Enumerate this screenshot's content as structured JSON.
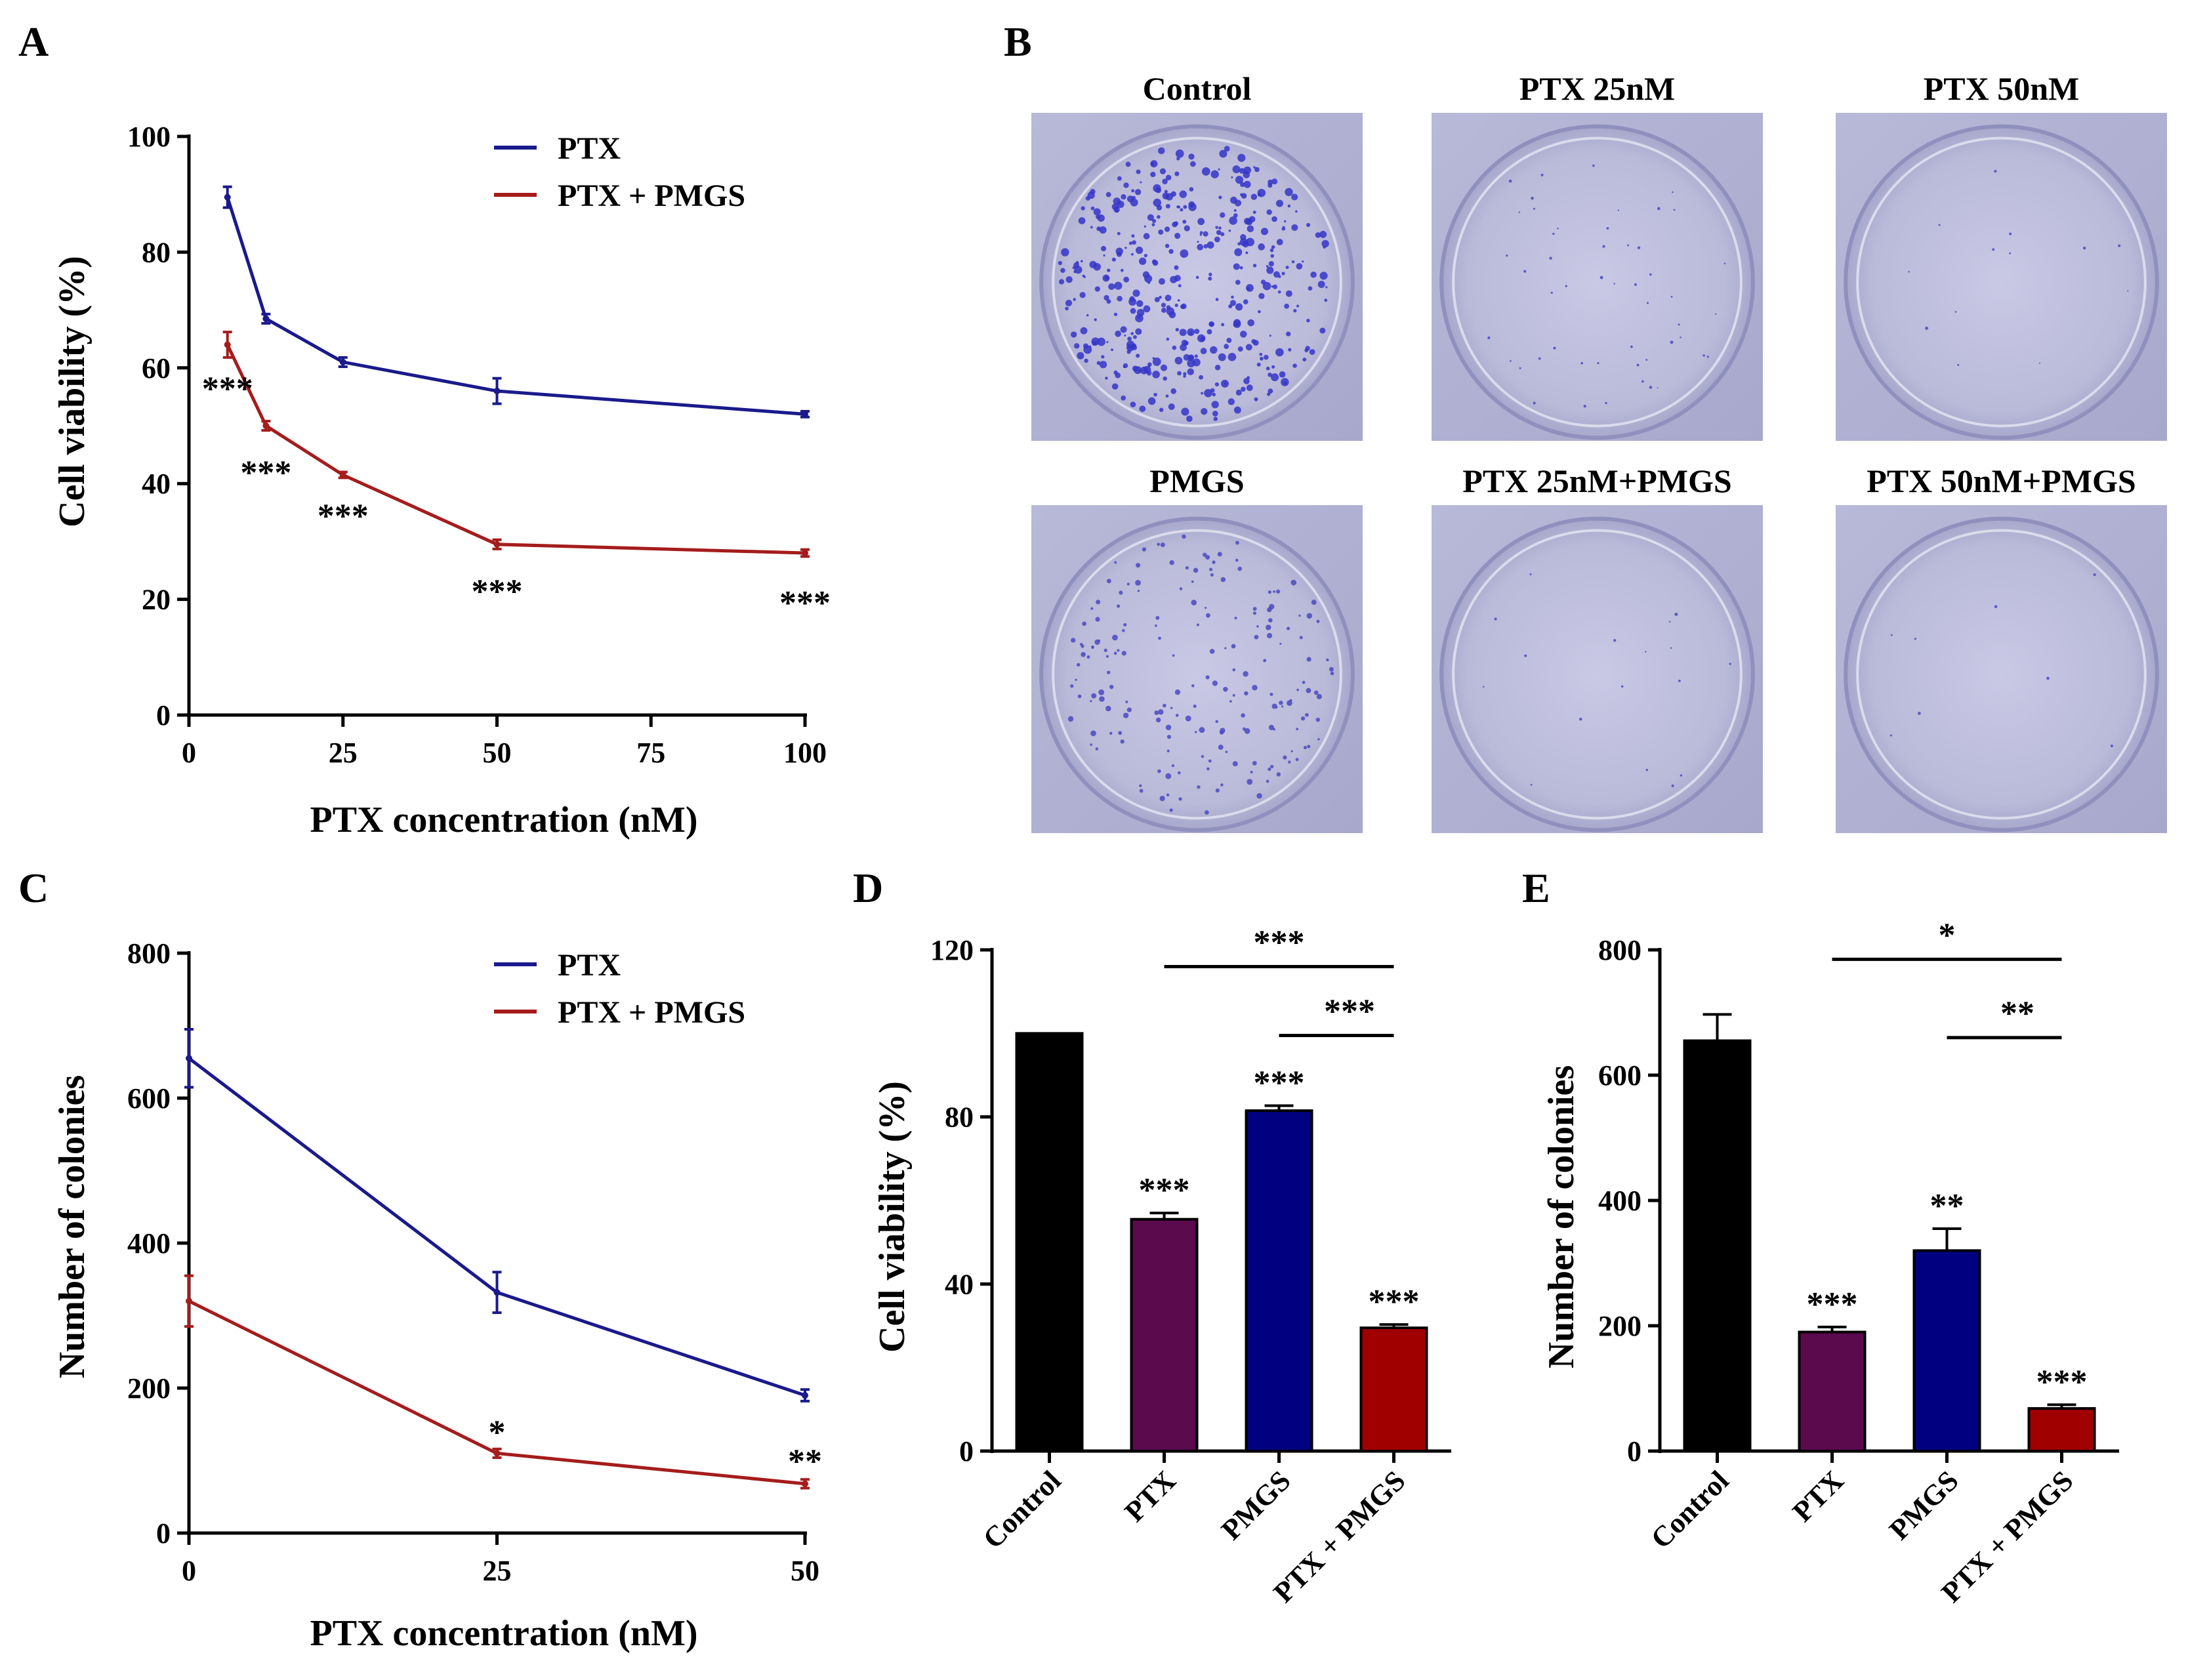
{
  "figure": {
    "panels": {
      "A": "A",
      "B": "B",
      "C": "C",
      "D": "D",
      "E": "E"
    }
  },
  "chart_data": [
    {
      "panel": "A",
      "type": "line",
      "xlabel": "PTX concentration (nM)",
      "ylabel": "Cell viability (%)",
      "xlim": [
        0,
        100
      ],
      "ylim": [
        0,
        100
      ],
      "xticks": [
        0,
        25,
        50,
        75,
        100
      ],
      "yticks": [
        0,
        20,
        40,
        60,
        80,
        100
      ],
      "legend": "top-right",
      "series": [
        {
          "name": "PTX",
          "color": "#1a1a8c",
          "x": [
            6.25,
            12.5,
            25,
            50,
            100
          ],
          "y": [
            89.5,
            68.5,
            61,
            56,
            52
          ],
          "err": [
            1.8,
            0.8,
            0.8,
            2.2,
            0.5
          ]
        },
        {
          "name": "PTX + PMGS",
          "color": "#a51c1c",
          "x": [
            6.25,
            12.5,
            25,
            50,
            100
          ],
          "y": [
            64,
            50,
            41.5,
            29.5,
            28
          ],
          "err": [
            2.2,
            0.8,
            0.5,
            0.8,
            0.6
          ]
        }
      ],
      "annotations": [
        {
          "x": 6.25,
          "y": 56.5,
          "text": "***"
        },
        {
          "x": 12.5,
          "y": 42,
          "text": "***"
        },
        {
          "x": 25,
          "y": 34.5,
          "text": "***"
        },
        {
          "x": 50,
          "y": 21.5,
          "text": "***"
        },
        {
          "x": 100,
          "y": 19.5,
          "text": "***"
        }
      ]
    },
    {
      "panel": "C",
      "type": "line",
      "xlabel": "PTX concentration (nM)",
      "ylabel": "Number of colonies",
      "xlim": [
        0,
        50
      ],
      "ylim": [
        0,
        800
      ],
      "xticks": [
        0,
        25,
        50
      ],
      "yticks": [
        0,
        200,
        400,
        600,
        800
      ],
      "legend": "top-right",
      "series": [
        {
          "name": "PTX",
          "color": "#1a1a8c",
          "x": [
            0,
            25,
            50
          ],
          "y": [
            655,
            332,
            190
          ],
          "err": [
            40,
            28,
            8
          ]
        },
        {
          "name": "PTX + PMGS",
          "color": "#a51c1c",
          "x": [
            0,
            25,
            50
          ],
          "y": [
            320,
            110,
            68
          ],
          "err": [
            35,
            6,
            6
          ]
        }
      ],
      "annotations": [
        {
          "x": 25,
          "y": 140,
          "text": "*"
        },
        {
          "x": 50,
          "y": 100,
          "text": "**"
        }
      ]
    },
    {
      "panel": "D",
      "type": "bar",
      "ylabel": "Cell viability (%)",
      "ylim": [
        0,
        120
      ],
      "yticks": [
        0,
        40,
        80,
        120
      ],
      "categories": [
        "Control",
        "PTX",
        "PMGS",
        "PTX + PMGS"
      ],
      "values": [
        100,
        55.5,
        81.5,
        29.5
      ],
      "err": [
        0,
        1.5,
        1.2,
        0.8
      ],
      "colors": [
        "#000000",
        "#5b0a4e",
        "#000080",
        "#a00000"
      ],
      "bar_labels": [
        "",
        "***",
        "***",
        "***"
      ],
      "brackets": [
        {
          "from": 1,
          "to": 3,
          "y": 116,
          "text": "***"
        },
        {
          "from": 2,
          "to": 3,
          "y": 99.5,
          "text": "***"
        }
      ]
    },
    {
      "panel": "E",
      "type": "bar",
      "ylabel": "Number of colonies",
      "ylim": [
        0,
        800
      ],
      "yticks": [
        0,
        200,
        400,
        600,
        800
      ],
      "categories": [
        "Control",
        "PTX",
        "PMGS",
        "PTX + PMGS"
      ],
      "values": [
        655,
        190,
        320,
        68
      ],
      "err": [
        42,
        8,
        35,
        6
      ],
      "colors": [
        "#000000",
        "#5b0a4e",
        "#000080",
        "#a00000"
      ],
      "bar_labels": [
        "",
        "***",
        "**",
        "***"
      ],
      "brackets": [
        {
          "from": 1,
          "to": 3,
          "y": 785,
          "text": "*"
        },
        {
          "from": 2,
          "to": 3,
          "y": 660,
          "text": "**"
        }
      ]
    }
  ],
  "photos": {
    "panel": "B",
    "labels": [
      "Control",
      "PTX 25nM",
      "PTX 50nM",
      "PMGS",
      "PTX 25nM+PMGS",
      "PTX 50nM+PMGS"
    ],
    "colony_density": [
      1.0,
      0.12,
      0.03,
      0.45,
      0.04,
      0.02
    ]
  }
}
